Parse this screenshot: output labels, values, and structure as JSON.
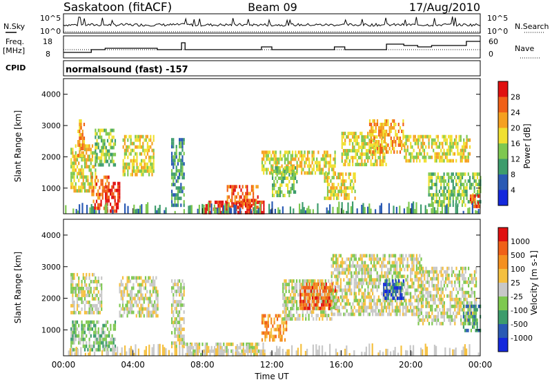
{
  "header": {
    "station": "Saskatoon (fitACF)",
    "beam": "Beam 09",
    "date": "17/Aug/2010"
  },
  "noise_panel": {
    "left_label": "N.Sky",
    "right_label": "N.Search",
    "ticks": [
      "10^5",
      "10^0"
    ]
  },
  "freq_panel": {
    "left_label_1": "Freq.",
    "left_label_2": "[MHz]",
    "left_ticks": [
      "18",
      "8"
    ],
    "right_label": "Nave",
    "right_ticks": [
      "60",
      "0"
    ]
  },
  "cpid": {
    "label": "CPID",
    "value": "normalsound (fast) -157"
  },
  "chart_data": [
    {
      "type": "heatmap",
      "name": "power",
      "ylabel": "Slant Range [km]",
      "xlabel": "",
      "yticks": [
        "4000",
        "3000",
        "2000",
        "1000"
      ],
      "ylim": [
        180,
        4500
      ],
      "colorbar_label": "Power [dB]",
      "colorbar_ticks": [
        "28",
        "24",
        "20",
        "16",
        "12",
        "8",
        "4"
      ],
      "colors": [
        "#1428dc",
        "#2a5ab4",
        "#3d9c6c",
        "#7ec850",
        "#f0e030",
        "#f5a020",
        "#f06018",
        "#e01010"
      ],
      "regions": [
        {
          "x": [
            0.4,
            1.8
          ],
          "y": [
            900,
            2400
          ],
          "level": 4
        },
        {
          "x": [
            0.8,
            1.2
          ],
          "y": [
            2000,
            3200
          ],
          "level": 5
        },
        {
          "x": [
            1.6,
            2.6
          ],
          "y": [
            400,
            1400
          ],
          "level": 6
        },
        {
          "x": [
            2.4,
            3.2
          ],
          "y": [
            300,
            1200
          ],
          "level": 7
        },
        {
          "x": [
            1.8,
            3.0
          ],
          "y": [
            1700,
            2900
          ],
          "level": 3
        },
        {
          "x": [
            3.4,
            5.2
          ],
          "y": [
            1400,
            2700
          ],
          "level": 4
        },
        {
          "x": [
            6.2,
            6.9
          ],
          "y": [
            400,
            2600
          ],
          "level": 2
        },
        {
          "x": [
            8.0,
            11.5
          ],
          "y": [
            200,
            600
          ],
          "level": 7
        },
        {
          "x": [
            9.4,
            11.2
          ],
          "y": [
            400,
            1100
          ],
          "level": 6
        },
        {
          "x": [
            11.4,
            15.6
          ],
          "y": [
            1500,
            2200
          ],
          "level": 4
        },
        {
          "x": [
            12.0,
            13.4
          ],
          "y": [
            800,
            1700
          ],
          "level": 3
        },
        {
          "x": [
            15.0,
            16.8
          ],
          "y": [
            700,
            1500
          ],
          "level": 4
        },
        {
          "x": [
            16.0,
            18.6
          ],
          "y": [
            1800,
            2800
          ],
          "level": 4
        },
        {
          "x": [
            17.6,
            19.6
          ],
          "y": [
            2200,
            3200
          ],
          "level": 5
        },
        {
          "x": [
            19.6,
            23.4
          ],
          "y": [
            1900,
            2700
          ],
          "level": 4
        },
        {
          "x": [
            21.0,
            24.0
          ],
          "y": [
            400,
            1500
          ],
          "level": 3
        },
        {
          "x": [
            23.4,
            24.0
          ],
          "y": [
            400,
            800
          ],
          "level": 6
        }
      ]
    },
    {
      "type": "heatmap",
      "name": "velocity",
      "ylabel": "Slant Range [km]",
      "xlabel": "Time UT",
      "xticks": [
        "00:00",
        "04:00",
        "08:00",
        "12:00",
        "16:00",
        "20:00",
        "00:00"
      ],
      "xlim": [
        0,
        24
      ],
      "yticks": [
        "4000",
        "3000",
        "2000",
        "1000"
      ],
      "ylim": [
        180,
        4500
      ],
      "colorbar_label": "Velocity [m s-1]",
      "colorbar_ticks": [
        "1000",
        "500",
        "100",
        "25",
        "-25",
        "-100",
        "-500",
        "-1000"
      ],
      "colors": [
        "#1428dc",
        "#2a5ab4",
        "#3d9c6c",
        "#7ec850",
        "#c8c8c8",
        "#f5c040",
        "#f59020",
        "#f06018",
        "#e01010"
      ],
      "regions": [
        {
          "x": [
            0.4,
            3.0
          ],
          "y": [
            400,
            1300
          ],
          "level": 3
        },
        {
          "x": [
            0.4,
            2.2
          ],
          "y": [
            1500,
            2800
          ],
          "level": 4
        },
        {
          "x": [
            3.2,
            5.4
          ],
          "y": [
            1400,
            2700
          ],
          "level": 4
        },
        {
          "x": [
            6.2,
            6.9
          ],
          "y": [
            500,
            2600
          ],
          "level": 4
        },
        {
          "x": [
            7.0,
            11.6
          ],
          "y": [
            200,
            600
          ],
          "level": 4
        },
        {
          "x": [
            11.4,
            12.8
          ],
          "y": [
            700,
            1500
          ],
          "level": 6
        },
        {
          "x": [
            12.6,
            15.4
          ],
          "y": [
            1300,
            2600
          ],
          "level": 4
        },
        {
          "x": [
            13.6,
            15.8
          ],
          "y": [
            1700,
            2500
          ],
          "level": 7
        },
        {
          "x": [
            15.4,
            20.6
          ],
          "y": [
            1500,
            3400
          ],
          "level": 4
        },
        {
          "x": [
            18.4,
            19.6
          ],
          "y": [
            2000,
            2600
          ],
          "level": 1
        },
        {
          "x": [
            20.4,
            23.8
          ],
          "y": [
            1200,
            3000
          ],
          "level": 4
        },
        {
          "x": [
            23.0,
            24.0
          ],
          "y": [
            1000,
            1800
          ],
          "level": 2
        }
      ]
    }
  ]
}
